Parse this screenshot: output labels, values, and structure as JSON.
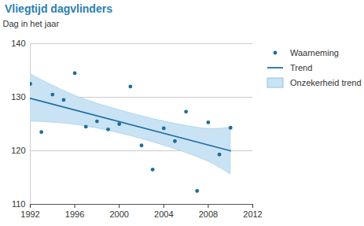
{
  "chart_data": {
    "type": "scatter",
    "title": "Vliegtijd dagvlinders",
    "y_label": "Dag in het jaar",
    "xlim": [
      1992,
      2012
    ],
    "xticks": [
      1992,
      1996,
      2000,
      2004,
      2008,
      2012
    ],
    "ylim": [
      110,
      140
    ],
    "yticks": [
      110,
      120,
      130,
      140
    ],
    "grid": true,
    "legend": "right",
    "series": [
      {
        "name": "Waarneming",
        "type": "scatter",
        "color": "#1f6c9c",
        "marker": "circle",
        "x": [
          1992,
          1993,
          1994,
          1995,
          1996,
          1997,
          1998,
          1999,
          2000,
          2001,
          2002,
          2003,
          2004,
          2005,
          2006,
          2007,
          2008,
          2009,
          2010
        ],
        "values": [
          132.5,
          123.5,
          130.5,
          129.5,
          134.5,
          124.5,
          125.5,
          124,
          125,
          132,
          121,
          116.5,
          124.2,
          121.8,
          127.3,
          112.5,
          125.3,
          119.3,
          124.3
        ]
      },
      {
        "name": "Trend",
        "type": "line",
        "color": "#1f6fa6",
        "line_style": "solid",
        "x": [
          1992,
          2010
        ],
        "values": [
          129.8,
          120
        ]
      },
      {
        "name": "Onzekerheid trend",
        "type": "area",
        "color": "#c9e3f4",
        "x": [
          1992,
          1996,
          2000,
          2004,
          2008,
          2010
        ],
        "lower": [
          125.5,
          124.9,
          123.3,
          121,
          118,
          115.6
        ],
        "upper": [
          134.3,
          130.3,
          127.6,
          125.5,
          124.1,
          124.3
        ]
      }
    ]
  }
}
